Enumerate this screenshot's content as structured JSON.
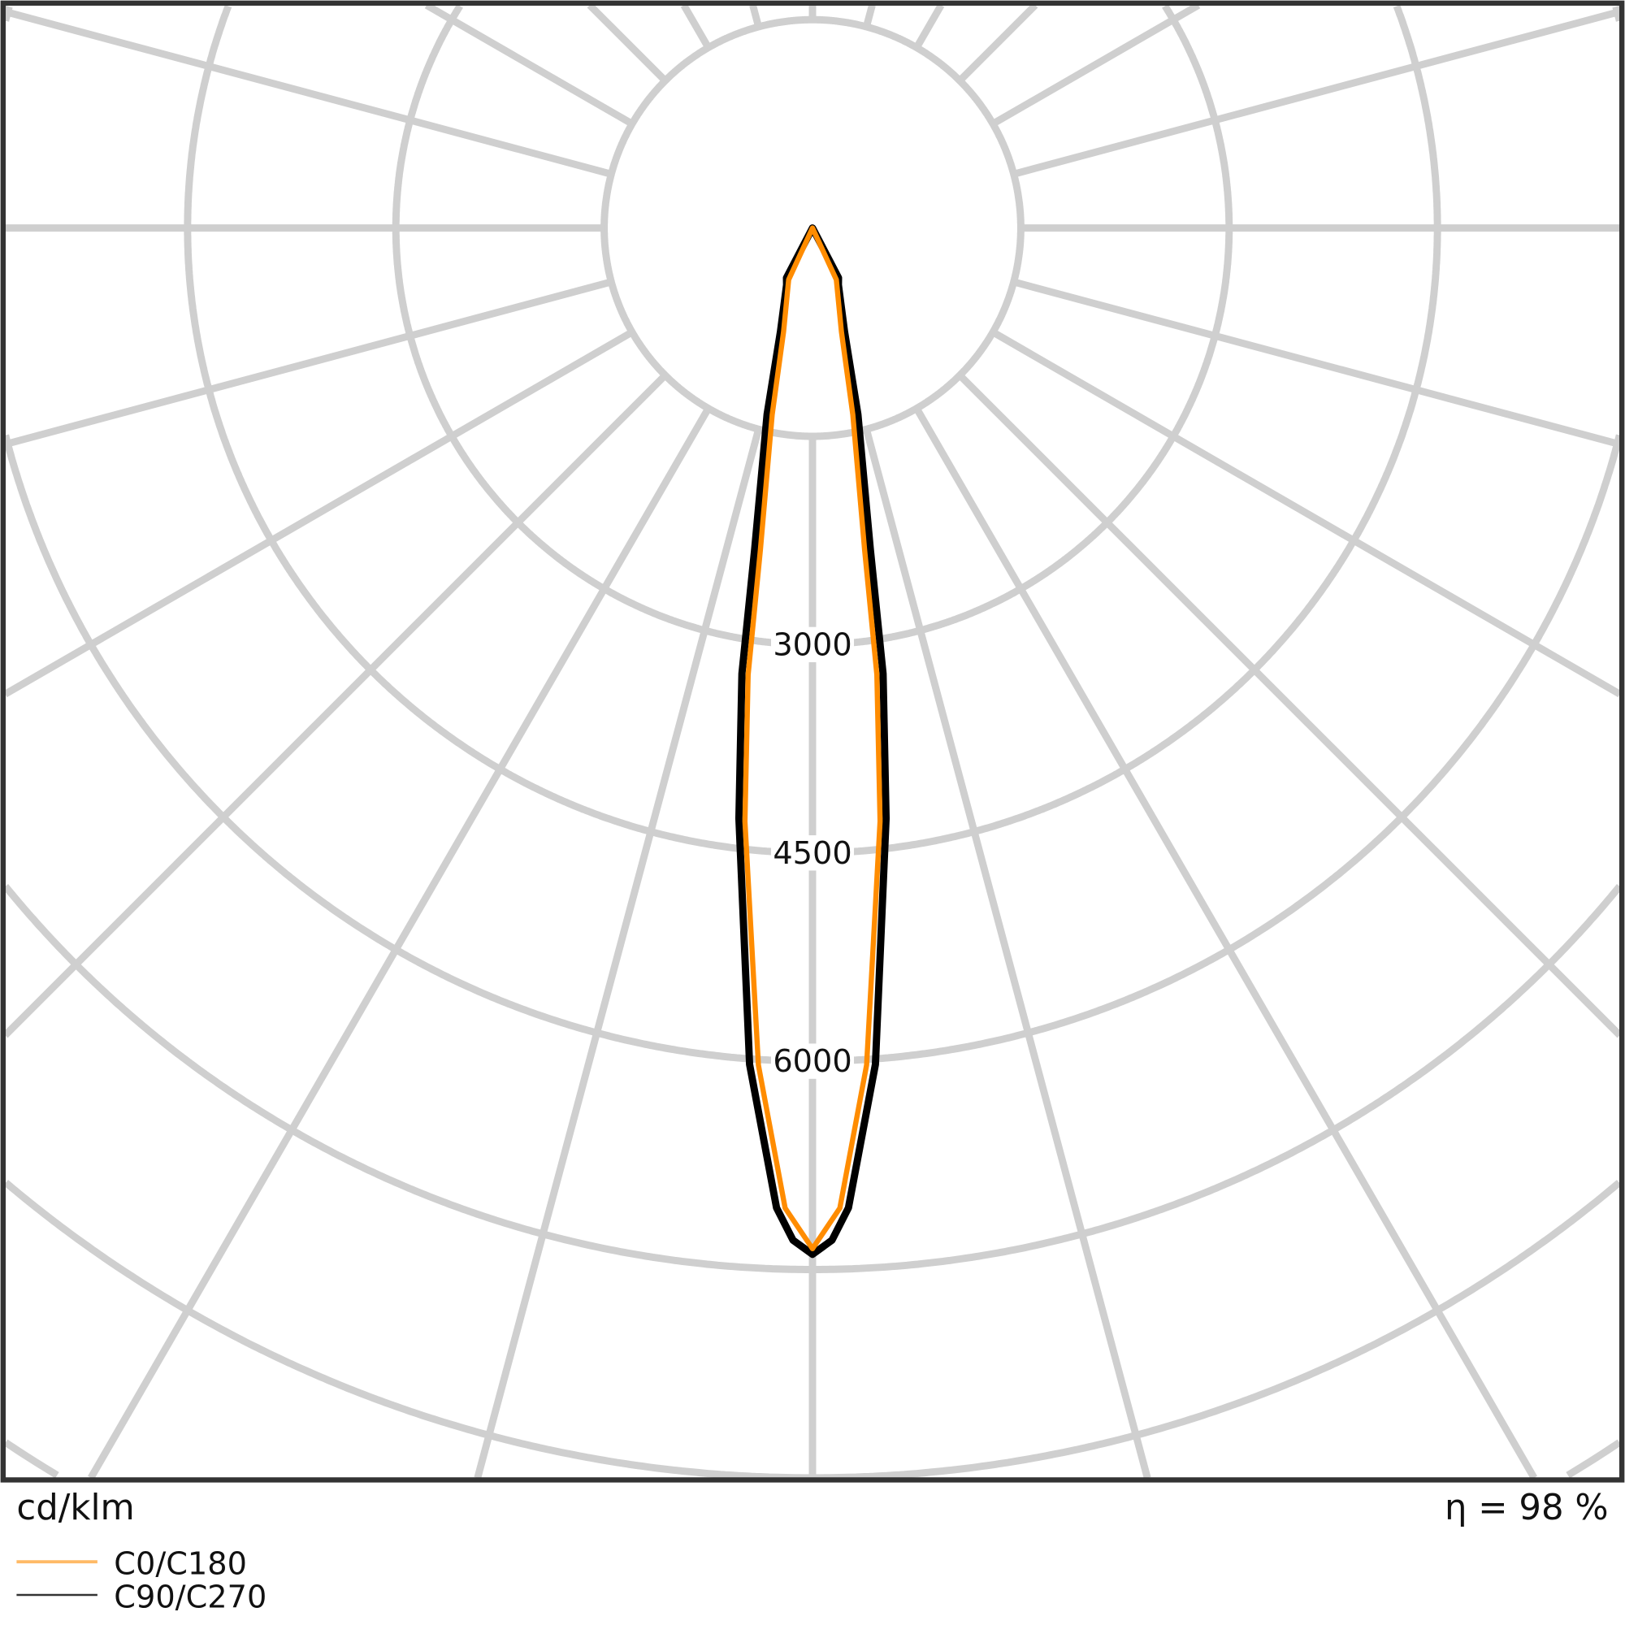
{
  "chart_data": {
    "type": "polar",
    "unit_label": "cd/klm",
    "efficiency_label": "η = 98 %",
    "tick_labels": [
      "3000",
      "4500",
      "6000"
    ],
    "ring_step": 1500,
    "ring_max": 12000,
    "angle_step_deg": 15,
    "grid": true,
    "legend_position": "bottom-left",
    "series": [
      {
        "name": "C0/C180",
        "color": "#ff8c00",
        "gamma_deg": [
          0,
          1.6,
          3.7,
          6.5,
          8.2,
          9.2,
          12.2,
          15.6,
          24.7,
          90
        ],
        "values": [
          7350,
          7060,
          6040,
          4300,
          3250,
          2350,
          1375,
          775,
          410,
          0
        ]
      },
      {
        "name": "C90/C270",
        "color": "#000000",
        "gamma_deg": [
          0,
          1.1,
          2.1,
          4.3,
          7.1,
          9.0,
          10.2,
          13.7,
          17.2,
          24.5,
          27.5,
          90
        ],
        "values": [
          7390,
          7290,
          7060,
          6040,
          4285,
          3250,
          2350,
          1380,
          780,
          450,
          405,
          0
        ]
      }
    ]
  }
}
